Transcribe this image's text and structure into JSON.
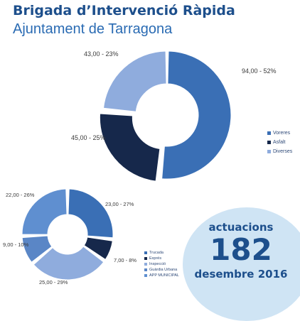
{
  "header": {
    "title": "Brigada d’Intervenció Ràpida",
    "subtitle": "Ajuntament de Tarragona"
  },
  "badge": {
    "top_label": "actuacions",
    "count": "182",
    "period": "desembre 2016"
  },
  "chart_data": [
    {
      "type": "pie",
      "style": "donut",
      "categories": [
        "Voreres",
        "Asfalt",
        "Diverses"
      ],
      "values": [
        94,
        45,
        43
      ],
      "percents": [
        52,
        25,
        23
      ],
      "data_labels": [
        "94,00 - 52%",
        "45,00 - 25%",
        "43,00 - 23%"
      ],
      "colors": [
        "#3a6fb5",
        "#16284b",
        "#8facdd"
      ],
      "legend_position": "right"
    },
    {
      "type": "pie",
      "style": "donut",
      "categories": [
        "Trucada",
        "Exprés",
        "Inspecció",
        "Guàrdia Urbana",
        "APP MUNICIPAL"
      ],
      "values": [
        23,
        7,
        25,
        9,
        22
      ],
      "percents": [
        27,
        8,
        29,
        10,
        26
      ],
      "data_labels": [
        "23,00 - 27%",
        "7,00 - 8%",
        "25,00 - 29%",
        "9,00 - 10%",
        "22,00 - 26%"
      ],
      "colors": [
        "#3a6fb5",
        "#16284b",
        "#8facdd",
        "#5a86c6",
        "#5f8fd0"
      ],
      "legend_position": "right"
    }
  ]
}
